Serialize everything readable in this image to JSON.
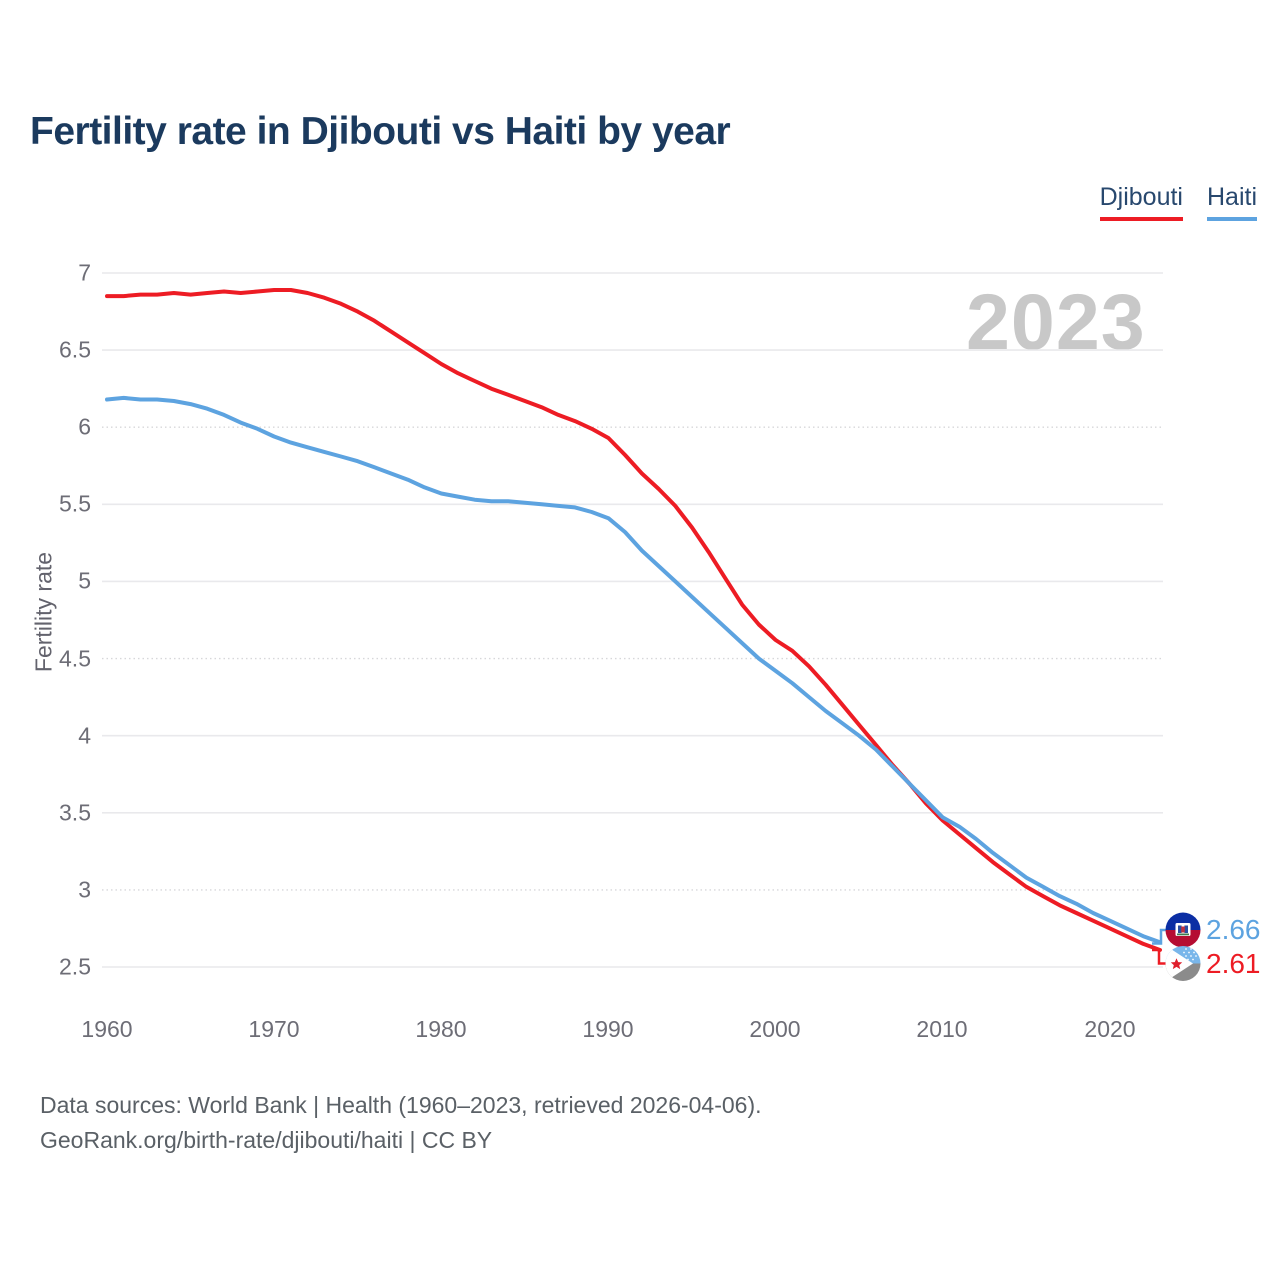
{
  "title": "Fertility rate in Djibouti vs Haiti by year",
  "watermark": "2023",
  "legend": {
    "items": [
      {
        "label": "Djibouti",
        "color": "#ed1c24"
      },
      {
        "label": "Haiti",
        "color": "#5da3e0"
      }
    ]
  },
  "y_axis": {
    "label": "Fertility rate",
    "ticks": [
      "7",
      "6.5",
      "6",
      "5.5",
      "5",
      "4.5",
      "4",
      "3.5",
      "3",
      "2.5"
    ]
  },
  "x_axis": {
    "ticks": [
      "1960",
      "1970",
      "1980",
      "1990",
      "2000",
      "2010",
      "2020"
    ]
  },
  "end_labels": [
    {
      "series": "Haiti",
      "value": "2.66",
      "color": "#5da3e0",
      "flag_icon": "haiti-flag"
    },
    {
      "series": "Djibouti",
      "value": "2.61",
      "color": "#ed1c24",
      "flag_icon": "djibouti-flag"
    }
  ],
  "footer": {
    "line1": "Data sources: World Bank | Health (1960–2023, retrieved 2026-04-06).",
    "line2": "GeoRank.org/birth-rate/djibouti/haiti | CC BY"
  },
  "chart_data": {
    "type": "line",
    "title": "Fertility rate in Djibouti vs Haiti by year",
    "xlabel": "",
    "ylabel": "Fertility rate",
    "x_start": 1960,
    "x_end": 2023,
    "ylim": [
      2.5,
      7
    ],
    "yticks": [
      7,
      6.5,
      6,
      5.5,
      5,
      4.5,
      4,
      3.5,
      3,
      2.5
    ],
    "dotted_gridlines": [
      6,
      4.5,
      3
    ],
    "xticks": [
      1960,
      1970,
      1980,
      1990,
      2000,
      2010,
      2020
    ],
    "grid": true,
    "legend_position": "top-right",
    "series": [
      {
        "name": "Djibouti",
        "color": "#ed1c24",
        "end_value": 2.61,
        "values": [
          6.85,
          6.85,
          6.86,
          6.86,
          6.87,
          6.86,
          6.87,
          6.88,
          6.87,
          6.88,
          6.89,
          6.89,
          6.87,
          6.84,
          6.8,
          6.75,
          6.69,
          6.62,
          6.55,
          6.48,
          6.41,
          6.35,
          6.3,
          6.25,
          6.21,
          6.17,
          6.13,
          6.08,
          6.04,
          5.99,
          5.93,
          5.82,
          5.7,
          5.6,
          5.49,
          5.35,
          5.19,
          5.02,
          4.85,
          4.72,
          4.62,
          4.55,
          4.45,
          4.33,
          4.2,
          4.07,
          3.94,
          3.81,
          3.69,
          3.56,
          3.45,
          3.36,
          3.27,
          3.18,
          3.1,
          3.02,
          2.96,
          2.9,
          2.85,
          2.8,
          2.75,
          2.7,
          2.65,
          2.61
        ]
      },
      {
        "name": "Haiti",
        "color": "#5da3e0",
        "end_value": 2.66,
        "values": [
          6.18,
          6.19,
          6.18,
          6.18,
          6.17,
          6.15,
          6.12,
          6.08,
          6.03,
          5.99,
          5.94,
          5.9,
          5.87,
          5.84,
          5.81,
          5.78,
          5.74,
          5.7,
          5.66,
          5.61,
          5.57,
          5.55,
          5.53,
          5.52,
          5.52,
          5.51,
          5.5,
          5.49,
          5.48,
          5.45,
          5.41,
          5.32,
          5.2,
          5.1,
          5.0,
          4.9,
          4.8,
          4.7,
          4.6,
          4.5,
          4.42,
          4.34,
          4.25,
          4.16,
          4.08,
          4.0,
          3.91,
          3.8,
          3.69,
          3.58,
          3.47,
          3.41,
          3.33,
          3.24,
          3.16,
          3.08,
          3.02,
          2.96,
          2.91,
          2.85,
          2.8,
          2.75,
          2.7,
          2.66
        ]
      }
    ]
  }
}
